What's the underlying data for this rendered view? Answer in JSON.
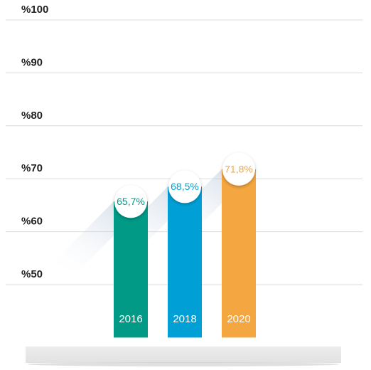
{
  "chart_data": {
    "type": "bar",
    "categories": [
      "2016",
      "2018",
      "2020"
    ],
    "values": [
      65.7,
      68.5,
      71.8
    ],
    "value_labels": [
      "65,7%",
      "68,5%",
      "71,8%"
    ],
    "colors": [
      "#009a87",
      "#00a0d6",
      "#f4a641"
    ],
    "ylim": [
      40,
      100
    ],
    "yticks": [
      {
        "value": 50,
        "label": "%50"
      },
      {
        "value": 60,
        "label": "%60"
      },
      {
        "value": 70,
        "label": "%70"
      },
      {
        "value": 80,
        "label": "%80"
      },
      {
        "value": 90,
        "label": "%90"
      },
      {
        "value": 100,
        "label": "%100"
      }
    ],
    "grid": true
  }
}
